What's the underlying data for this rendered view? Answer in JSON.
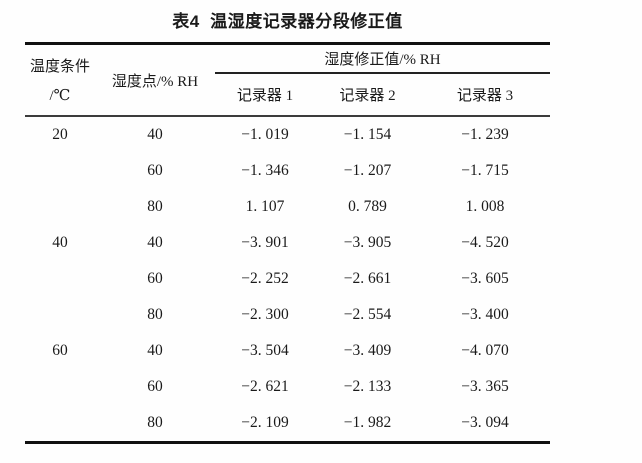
{
  "title": "表4  温湿度记录器分段修正值",
  "colors": {
    "text": "#1a1a1a",
    "rule": "#111111"
  },
  "table": {
    "col1_header_line1": "温度条件",
    "col1_header_line2": "/℃",
    "col2_header": "湿度点/% RH",
    "span_header": "湿度修正值/% RH",
    "recorder_headers": [
      "记录器 1",
      "记录器 2",
      "记录器 3"
    ],
    "rows": [
      {
        "temp": "20",
        "humidity": "40",
        "v1": "−1. 019",
        "v2": "−1. 154",
        "v3": "−1. 239"
      },
      {
        "temp": "",
        "humidity": "60",
        "v1": "−1. 346",
        "v2": "−1. 207",
        "v3": "−1. 715"
      },
      {
        "temp": "",
        "humidity": "80",
        "v1": "1. 107",
        "v2": "0. 789",
        "v3": "1. 008"
      },
      {
        "temp": "40",
        "humidity": "40",
        "v1": "−3. 901",
        "v2": "−3. 905",
        "v3": "−4. 520"
      },
      {
        "temp": "",
        "humidity": "60",
        "v1": "−2. 252",
        "v2": "−2. 661",
        "v3": "−3. 605"
      },
      {
        "temp": "",
        "humidity": "80",
        "v1": "−2. 300",
        "v2": "−2. 554",
        "v3": "−3. 400"
      },
      {
        "temp": "60",
        "humidity": "40",
        "v1": "−3. 504",
        "v2": "−3. 409",
        "v3": "−4. 070"
      },
      {
        "temp": "",
        "humidity": "60",
        "v1": "−2. 621",
        "v2": "−2. 133",
        "v3": "−3. 365"
      },
      {
        "temp": "",
        "humidity": "80",
        "v1": "−2. 109",
        "v2": "−1. 982",
        "v3": "−3. 094"
      }
    ]
  }
}
